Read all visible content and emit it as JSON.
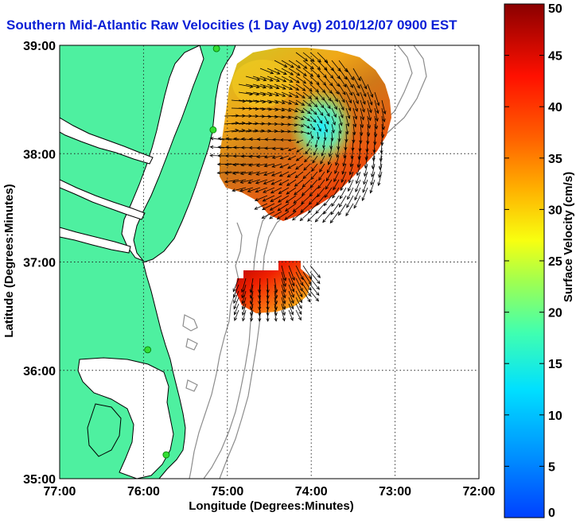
{
  "title": "Southern Mid-Atlantic Raw Velocities (1 Day Avg) 2010/12/07 0900 EST",
  "map": {
    "x_label": "Longitude (Degrees:Minutes)",
    "y_label": "Latitude (Degrees:Minutes)",
    "x_ticks": [
      {
        "lon": -77,
        "label": "77:00"
      },
      {
        "lon": -76,
        "label": "76:00"
      },
      {
        "lon": -75,
        "label": "75:00"
      },
      {
        "lon": -74,
        "label": "74:00"
      },
      {
        "lon": -73,
        "label": "73:00"
      },
      {
        "lon": -72,
        "label": "72:00"
      }
    ],
    "y_ticks": [
      {
        "lat": 39,
        "label": "39:00"
      },
      {
        "lat": 38,
        "label": "38:00"
      },
      {
        "lat": 37,
        "label": "37:00"
      },
      {
        "lat": 36,
        "label": "36:00"
      },
      {
        "lat": 35,
        "label": "35:00"
      }
    ],
    "lon_range": [
      -77,
      -72
    ],
    "lat_range": [
      35,
      39
    ],
    "grid": "dotted",
    "colors": {
      "land": "#4ef0a0",
      "coastline": "#000000",
      "bathymetry": "#8c8c8c",
      "station": "#33dd33",
      "vector": "#000000"
    },
    "stations": [
      {
        "lon": -75.13,
        "lat": 38.97
      },
      {
        "lon": -75.17,
        "lat": 38.22
      },
      {
        "lon": -75.95,
        "lat": 36.19
      },
      {
        "lon": -75.73,
        "lat": 35.22
      }
    ]
  },
  "colorbar": {
    "label": "Surface Velocity (cm/s)",
    "range": [
      0,
      50
    ],
    "ticks": [
      "0",
      "5",
      "10",
      "15",
      "20",
      "25",
      "30",
      "35",
      "40",
      "45",
      "50"
    ],
    "colormap": "jet"
  }
}
